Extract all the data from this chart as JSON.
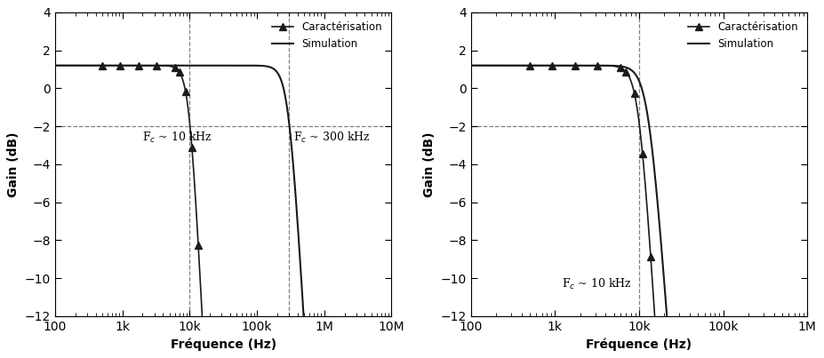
{
  "subplot1": {
    "xlabel": "Fréquence (Hz)",
    "ylabel": "Gain (dB)",
    "xlim": [
      100,
      10000000
    ],
    "ylim": [
      -12,
      4
    ],
    "yticks": [
      4,
      2,
      0,
      -2,
      -4,
      -6,
      -8,
      -10,
      -12
    ],
    "fc_charac": 10000,
    "fc_sim": 300000,
    "order_charac": 3.5,
    "order_sim": 3.0,
    "gain_passband": 1.148,
    "hline_y": -2,
    "vline1_x": 10000,
    "vline2_x": 300000,
    "ann1_x": 2000,
    "ann1_y": -2.8,
    "ann2_x": 350000,
    "ann2_y": -2.8,
    "ann1_text": "F$_c$ ~ 10 kHz",
    "ann2_text": "F$_c$ ~ 300 kHz",
    "pts_f_start": 7000,
    "pts_f_end": 280000,
    "pts_n": 18
  },
  "subplot2": {
    "xlabel": "Fréquence (Hz)",
    "ylabel": "Gain (dB)",
    "xlim": [
      100,
      1000000
    ],
    "ylim": [
      -12,
      4
    ],
    "yticks": [
      4,
      2,
      0,
      -2,
      -4,
      -6,
      -8,
      -10,
      -12
    ],
    "fc_charac": 10000,
    "fc_sim": 13000,
    "order_charac": 3.5,
    "order_sim": 3.0,
    "gain_passband": 1.148,
    "hline_y": -2,
    "vline1_x": 10000,
    "ann1_x": 1200,
    "ann1_y": -10.5,
    "ann1_text": "F$_c$ ~ 10 kHz",
    "pts_f_start": 7000,
    "pts_f_end": 500000,
    "pts_n": 20
  },
  "legend_labels": [
    "Caractérisation",
    "Simulation"
  ],
  "line_color": "#1a1a1a",
  "marker": "^",
  "markersize": 6,
  "background_color": "#ffffff"
}
